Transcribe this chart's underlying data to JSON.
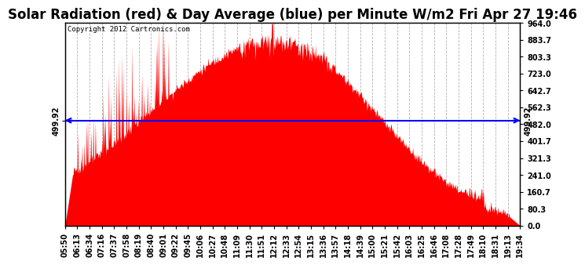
{
  "title": "Solar Radiation (red) & Day Average (blue) per Minute W/m2 Fri Apr 27 19:46",
  "copyright": "Copyright 2012 Cartronics.com",
  "day_average": 499.92,
  "y_max": 964.0,
  "y_min": 0.0,
  "y_ticks_right": [
    0.0,
    80.3,
    160.7,
    241.0,
    321.3,
    401.7,
    482.0,
    562.3,
    642.7,
    723.0,
    803.3,
    883.7,
    964.0
  ],
  "y_tick_labels_right": [
    "0.0",
    "80.3",
    "160.7",
    "241.0",
    "321.3",
    "401.7",
    "482.0",
    "562.3",
    "642.7",
    "723.0",
    "803.3",
    "883.7",
    "964.0"
  ],
  "x_tick_labels": [
    "05:50",
    "06:13",
    "06:34",
    "07:16",
    "07:37",
    "07:58",
    "08:19",
    "08:40",
    "09:01",
    "09:22",
    "09:45",
    "10:06",
    "10:27",
    "10:48",
    "11:09",
    "11:30",
    "11:51",
    "12:12",
    "12:33",
    "12:54",
    "13:15",
    "13:36",
    "13:57",
    "14:18",
    "14:39",
    "15:00",
    "15:21",
    "15:42",
    "16:03",
    "16:25",
    "16:46",
    "17:08",
    "17:28",
    "17:49",
    "18:10",
    "18:31",
    "19:13",
    "19:34"
  ],
  "fill_color": "#FF0000",
  "line_color": "#0000FF",
  "bg_color": "#FFFFFF",
  "grid_color": "#AAAAAA",
  "title_fontsize": 12,
  "label_fontsize": 7,
  "copyright_fontsize": 6.5
}
